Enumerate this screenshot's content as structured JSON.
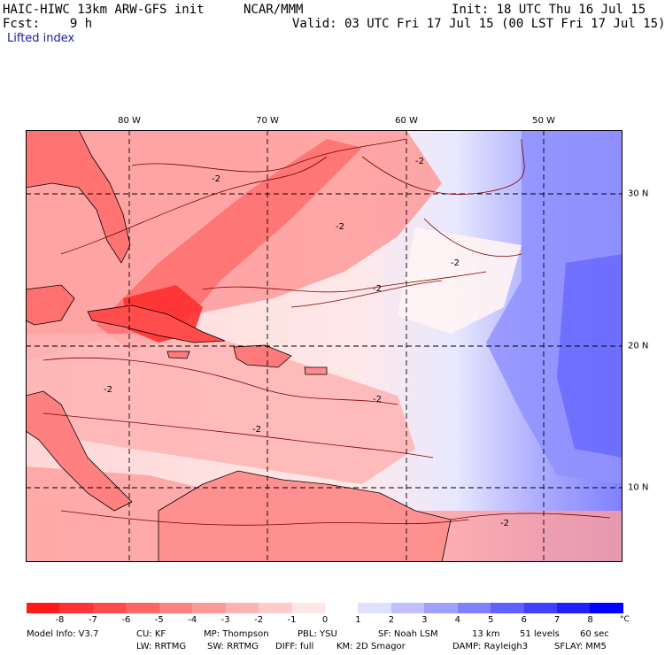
{
  "header": {
    "model": "HAIC-HIWC 13km ARW-GFS init",
    "org": "NCAR/MMM",
    "init": "Init: 18 UTC Thu 16 Jul 15",
    "fcst": "Fcst:    9 h",
    "valid": "Valid: 03 UTC Fri 17 Jul 15 (00 LST Fri 17 Jul 15)",
    "field": "Lifted index"
  },
  "axes": {
    "lon_labels": [
      "80 W",
      "70 W",
      "60 W",
      "50 W"
    ],
    "lat_labels": [
      "30 N",
      "20 N",
      "10 N"
    ]
  },
  "contour_label": "-2",
  "colorbar": {
    "labels": [
      "-8",
      "-7",
      "-6",
      "-5",
      "-4",
      "-3",
      "-2",
      "-1",
      "0",
      "1",
      "2",
      "3",
      "4",
      "5",
      "6",
      "7",
      "8"
    ],
    "unit": "°C",
    "colors": [
      "#ff1a1a",
      "#ff3333",
      "#ff4d4d",
      "#ff6666",
      "#ff8080",
      "#ff9999",
      "#ffb3b3",
      "#ffcccc",
      "#ffe6e6",
      "#ffffff",
      "#e0e0ff",
      "#c0c0ff",
      "#a0a0ff",
      "#8080ff",
      "#6060ff",
      "#4040ff",
      "#2020ff",
      "#0000ff"
    ]
  },
  "map_colors": {
    "land": "#ff7373",
    "land_deep": "#ff3a3a",
    "ocean_warm": "#ffb0b0",
    "ocean_mid": "#ffd6d6",
    "neutral": "#ffffff",
    "stable_light": "#c8c8ff",
    "stable": "#8f8fff",
    "stable_deep": "#6a6aff",
    "coast": "#000000",
    "contour": "#7a0000",
    "grid": "#000000"
  },
  "model_info": {
    "line1": [
      "Model Info: V3.7",
      "CU: KF",
      "MP: Thompson",
      "PBL: YSU",
      "SF: Noah LSM",
      "13 km",
      "51 levels",
      "60 sec"
    ],
    "line2": [
      "LW: RRTMG",
      "SW: RRTMG",
      "DIFF: full",
      "KM: 2D Smagor",
      "DAMP: Rayleigh3",
      "SFLAY: MM5"
    ]
  }
}
